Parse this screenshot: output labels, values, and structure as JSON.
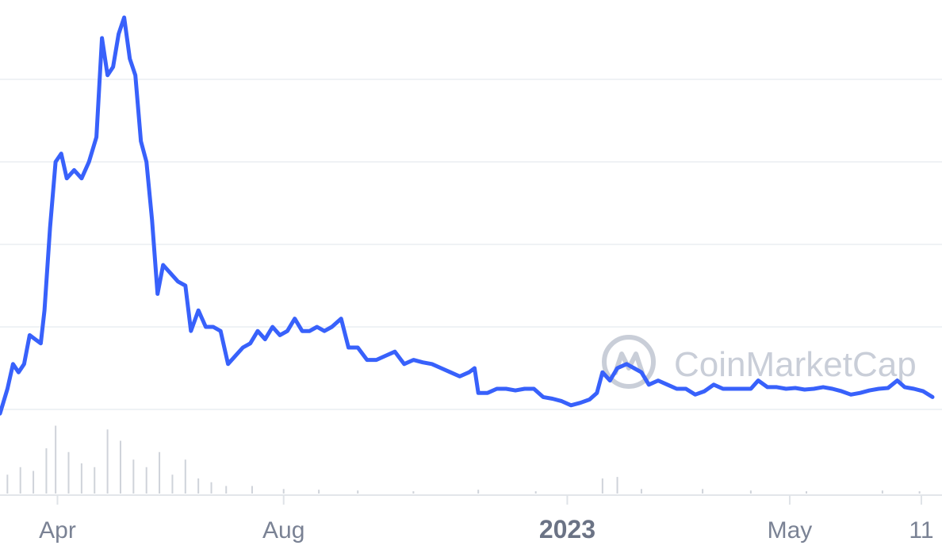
{
  "watermark": {
    "text": "CoinMarketCap",
    "logo_icon": "coinmarketcap-logo-icon"
  },
  "colors": {
    "line": "#3861fb",
    "grid": "#eff2f5",
    "volume": "#cfd3da",
    "axis_label": "#7a8294"
  },
  "chart_data": {
    "type": "line",
    "title": "",
    "xlabel": "",
    "ylabel": "",
    "x_ticks": [
      {
        "label": "Apr",
        "date": "2022-04-01",
        "bold": false
      },
      {
        "label": "Aug",
        "date": "2022-08-01",
        "bold": false
      },
      {
        "label": "2023",
        "date": "2023-01-01",
        "bold": true
      },
      {
        "label": "May",
        "date": "2023-05-01",
        "bold": false
      },
      {
        "label": "11",
        "date": "2023-07-11",
        "bold": false
      }
    ],
    "x_range": [
      "2022-03-01",
      "2023-07-17"
    ],
    "y_range": [
      0,
      6
    ],
    "y_gridlines": [
      1,
      2,
      3,
      4,
      5
    ],
    "y_axis_labels_visible": false,
    "grid": true,
    "series": [
      {
        "kind": "price_line",
        "points": [
          [
            "2022-03-01",
            0.95
          ],
          [
            "2022-03-05",
            1.25
          ],
          [
            "2022-03-08",
            1.55
          ],
          [
            "2022-03-11",
            1.45
          ],
          [
            "2022-03-14",
            1.55
          ],
          [
            "2022-03-17",
            1.9
          ],
          [
            "2022-03-20",
            1.85
          ],
          [
            "2022-03-23",
            1.8
          ],
          [
            "2022-03-25",
            2.2
          ],
          [
            "2022-03-28",
            3.2
          ],
          [
            "2022-03-31",
            4.0
          ],
          [
            "2022-04-03",
            4.1
          ],
          [
            "2022-04-06",
            3.8
          ],
          [
            "2022-04-10",
            3.9
          ],
          [
            "2022-04-14",
            3.8
          ],
          [
            "2022-04-18",
            4.0
          ],
          [
            "2022-04-22",
            4.3
          ],
          [
            "2022-04-25",
            5.5
          ],
          [
            "2022-04-28",
            5.05
          ],
          [
            "2022-05-01",
            5.15
          ],
          [
            "2022-05-04",
            5.55
          ],
          [
            "2022-05-07",
            5.75
          ],
          [
            "2022-05-10",
            5.25
          ],
          [
            "2022-05-13",
            5.05
          ],
          [
            "2022-05-16",
            4.25
          ],
          [
            "2022-05-19",
            4.0
          ],
          [
            "2022-05-22",
            3.3
          ],
          [
            "2022-05-25",
            2.4
          ],
          [
            "2022-05-28",
            2.75
          ],
          [
            "2022-06-01",
            2.65
          ],
          [
            "2022-06-05",
            2.55
          ],
          [
            "2022-06-09",
            2.5
          ],
          [
            "2022-06-12",
            1.95
          ],
          [
            "2022-06-16",
            2.2
          ],
          [
            "2022-06-20",
            2.0
          ],
          [
            "2022-06-24",
            2.0
          ],
          [
            "2022-06-28",
            1.95
          ],
          [
            "2022-07-02",
            1.55
          ],
          [
            "2022-07-06",
            1.65
          ],
          [
            "2022-07-10",
            1.75
          ],
          [
            "2022-07-14",
            1.8
          ],
          [
            "2022-07-18",
            1.95
          ],
          [
            "2022-07-22",
            1.85
          ],
          [
            "2022-07-26",
            2.0
          ],
          [
            "2022-07-30",
            1.9
          ],
          [
            "2022-08-03",
            1.95
          ],
          [
            "2022-08-07",
            2.1
          ],
          [
            "2022-08-11",
            1.95
          ],
          [
            "2022-08-15",
            1.95
          ],
          [
            "2022-08-19",
            2.0
          ],
          [
            "2022-08-23",
            1.95
          ],
          [
            "2022-08-27",
            2.0
          ],
          [
            "2022-09-01",
            2.1
          ],
          [
            "2022-09-05",
            1.75
          ],
          [
            "2022-09-10",
            1.75
          ],
          [
            "2022-09-15",
            1.6
          ],
          [
            "2022-09-20",
            1.6
          ],
          [
            "2022-09-25",
            1.65
          ],
          [
            "2022-09-30",
            1.7
          ],
          [
            "2022-10-05",
            1.55
          ],
          [
            "2022-10-10",
            1.6
          ],
          [
            "2022-10-15",
            1.57
          ],
          [
            "2022-10-20",
            1.55
          ],
          [
            "2022-10-25",
            1.5
          ],
          [
            "2022-10-30",
            1.45
          ],
          [
            "2022-11-04",
            1.4
          ],
          [
            "2022-11-09",
            1.45
          ],
          [
            "2022-11-12",
            1.5
          ],
          [
            "2022-11-14",
            1.2
          ],
          [
            "2022-11-19",
            1.2
          ],
          [
            "2022-11-24",
            1.25
          ],
          [
            "2022-11-29",
            1.25
          ],
          [
            "2022-12-04",
            1.23
          ],
          [
            "2022-12-09",
            1.25
          ],
          [
            "2022-12-14",
            1.25
          ],
          [
            "2022-12-19",
            1.15
          ],
          [
            "2022-12-24",
            1.13
          ],
          [
            "2022-12-29",
            1.1
          ],
          [
            "2023-01-03",
            1.05
          ],
          [
            "2023-01-08",
            1.08
          ],
          [
            "2023-01-13",
            1.12
          ],
          [
            "2023-01-17",
            1.2
          ],
          [
            "2023-01-20",
            1.45
          ],
          [
            "2023-01-24",
            1.35
          ],
          [
            "2023-01-28",
            1.5
          ],
          [
            "2023-02-02",
            1.55
          ],
          [
            "2023-02-06",
            1.5
          ],
          [
            "2023-02-10",
            1.45
          ],
          [
            "2023-02-14",
            1.3
          ],
          [
            "2023-02-19",
            1.35
          ],
          [
            "2023-02-24",
            1.3
          ],
          [
            "2023-03-01",
            1.25
          ],
          [
            "2023-03-06",
            1.25
          ],
          [
            "2023-03-11",
            1.18
          ],
          [
            "2023-03-16",
            1.22
          ],
          [
            "2023-03-21",
            1.3
          ],
          [
            "2023-03-26",
            1.25
          ],
          [
            "2023-03-31",
            1.25
          ],
          [
            "2023-04-05",
            1.25
          ],
          [
            "2023-04-10",
            1.25
          ],
          [
            "2023-04-14",
            1.35
          ],
          [
            "2023-04-19",
            1.27
          ],
          [
            "2023-04-24",
            1.27
          ],
          [
            "2023-04-29",
            1.25
          ],
          [
            "2023-05-04",
            1.26
          ],
          [
            "2023-05-09",
            1.24
          ],
          [
            "2023-05-14",
            1.25
          ],
          [
            "2023-05-19",
            1.27
          ],
          [
            "2023-05-24",
            1.25
          ],
          [
            "2023-05-29",
            1.22
          ],
          [
            "2023-06-03",
            1.18
          ],
          [
            "2023-06-08",
            1.2
          ],
          [
            "2023-06-13",
            1.23
          ],
          [
            "2023-06-18",
            1.25
          ],
          [
            "2023-06-23",
            1.26
          ],
          [
            "2023-06-28",
            1.35
          ],
          [
            "2023-07-02",
            1.27
          ],
          [
            "2023-07-07",
            1.25
          ],
          [
            "2023-07-12",
            1.22
          ],
          [
            "2023-07-17",
            1.15
          ]
        ]
      },
      {
        "kind": "volume_bars",
        "points": [
          [
            "2022-03-05",
            0.25
          ],
          [
            "2022-03-12",
            0.35
          ],
          [
            "2022-03-19",
            0.3
          ],
          [
            "2022-03-26",
            0.6
          ],
          [
            "2022-03-31",
            0.9
          ],
          [
            "2022-04-07",
            0.55
          ],
          [
            "2022-04-14",
            0.4
          ],
          [
            "2022-04-21",
            0.35
          ],
          [
            "2022-04-28",
            0.85
          ],
          [
            "2022-05-05",
            0.7
          ],
          [
            "2022-05-12",
            0.45
          ],
          [
            "2022-05-19",
            0.35
          ],
          [
            "2022-05-26",
            0.55
          ],
          [
            "2022-06-02",
            0.25
          ],
          [
            "2022-06-09",
            0.45
          ],
          [
            "2022-06-16",
            0.2
          ],
          [
            "2022-06-23",
            0.15
          ],
          [
            "2022-07-01",
            0.1
          ],
          [
            "2022-07-15",
            0.1
          ],
          [
            "2022-08-01",
            0.06
          ],
          [
            "2022-08-20",
            0.05
          ],
          [
            "2022-09-10",
            0.04
          ],
          [
            "2022-10-10",
            0.03
          ],
          [
            "2022-11-14",
            0.05
          ],
          [
            "2022-12-15",
            0.03
          ],
          [
            "2023-01-20",
            0.2
          ],
          [
            "2023-01-28",
            0.22
          ],
          [
            "2023-02-10",
            0.06
          ],
          [
            "2023-03-15",
            0.06
          ],
          [
            "2023-04-10",
            0.04
          ],
          [
            "2023-05-10",
            0.03
          ],
          [
            "2023-06-20",
            0.04
          ],
          [
            "2023-07-10",
            0.03
          ]
        ]
      }
    ]
  }
}
